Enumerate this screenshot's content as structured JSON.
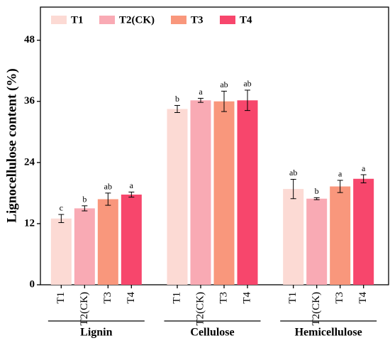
{
  "chart_data": {
    "type": "bar",
    "y_label": "Lignocellulose content (%)",
    "categories": [
      "Lignin",
      "Cellulose",
      "Hemicellulose"
    ],
    "series": [
      {
        "name": "T1",
        "color": "#fcdad4",
        "values": [
          13.0,
          34.5,
          18.8
        ],
        "errors": [
          0.8,
          0.7,
          1.9
        ],
        "significance": [
          "c",
          "b",
          "ab"
        ]
      },
      {
        "name": "T2(CK)",
        "color": "#f9aab4",
        "values": [
          15.0,
          36.2,
          16.9
        ],
        "errors": [
          0.5,
          0.4,
          0.2
        ],
        "significance": [
          "b",
          "a",
          "b"
        ]
      },
      {
        "name": "T3",
        "color": "#f9977c",
        "values": [
          16.8,
          36.0,
          19.3
        ],
        "errors": [
          1.2,
          2.0,
          1.2
        ],
        "significance": [
          "ab",
          "ab",
          "a"
        ]
      },
      {
        "name": "T4",
        "color": "#f7466c",
        "values": [
          17.7,
          36.2,
          20.8
        ],
        "errors": [
          0.5,
          2.0,
          0.8
        ],
        "significance": [
          "a",
          "ab",
          "a"
        ]
      }
    ],
    "ylim": [
      0,
      54.5
    ],
    "yticks": [
      0,
      12,
      24,
      36,
      48
    ],
    "legend": "top-left"
  }
}
